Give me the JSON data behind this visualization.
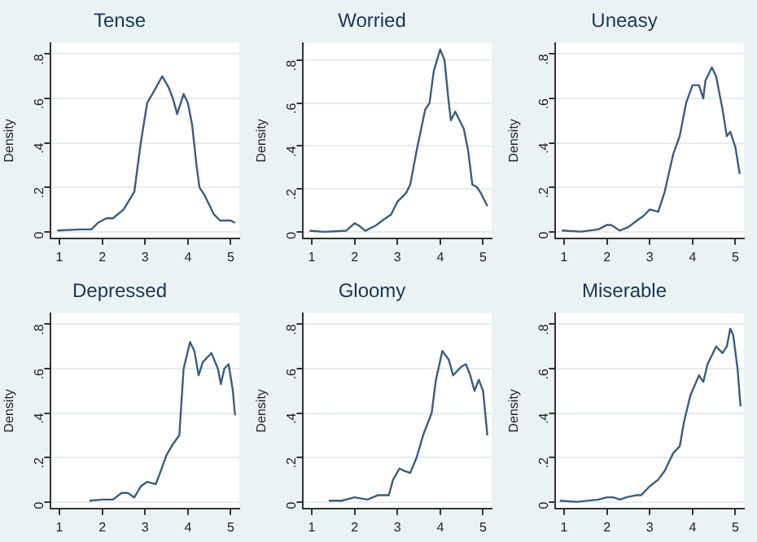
{
  "chart_data": [
    {
      "type": "line",
      "title": "Tense",
      "ylabel": "Density",
      "color": "#3e5c7e",
      "grid": "y",
      "xlim": [
        0.8,
        5.2
      ],
      "ylim": [
        -0.03,
        0.85
      ],
      "xticks": [
        1,
        2,
        3,
        4,
        5
      ],
      "yticks": [
        {
          "value": 0,
          "label": "0"
        },
        {
          "value": 0.2,
          "label": ".2"
        },
        {
          "value": 0.4,
          "label": ".4"
        },
        {
          "value": 0.6,
          "label": ".6"
        },
        {
          "value": 0.8,
          "label": ".8"
        }
      ],
      "x": [
        0.95,
        1.5,
        1.75,
        1.9,
        2.1,
        2.25,
        2.5,
        2.75,
        2.9,
        3.05,
        3.2,
        3.4,
        3.55,
        3.65,
        3.75,
        3.9,
        4.0,
        4.1,
        4.2,
        4.27,
        4.4,
        4.6,
        4.75,
        5.0,
        5.1
      ],
      "values": [
        0.005,
        0.01,
        0.01,
        0.04,
        0.06,
        0.06,
        0.1,
        0.18,
        0.4,
        0.58,
        0.63,
        0.7,
        0.65,
        0.6,
        0.53,
        0.62,
        0.58,
        0.48,
        0.3,
        0.2,
        0.16,
        0.08,
        0.05,
        0.05,
        0.04
      ]
    },
    {
      "type": "line",
      "title": "Worried",
      "ylabel": "Density",
      "color": "#3e5c7e",
      "grid": "y",
      "xlim": [
        0.8,
        5.2
      ],
      "ylim": [
        -0.03,
        0.88
      ],
      "xticks": [
        1,
        2,
        3,
        4,
        5
      ],
      "yticks": [
        {
          "value": 0,
          "label": "0"
        },
        {
          "value": 0.2,
          "label": ".2"
        },
        {
          "value": 0.4,
          "label": ".4"
        },
        {
          "value": 0.6,
          "label": ".6"
        },
        {
          "value": 0.8,
          "label": ".8"
        }
      ],
      "x": [
        0.95,
        1.3,
        1.8,
        2.0,
        2.1,
        2.25,
        2.5,
        2.7,
        2.85,
        3.0,
        3.2,
        3.3,
        3.45,
        3.65,
        3.75,
        3.85,
        4.0,
        4.1,
        4.2,
        4.25,
        4.35,
        4.55,
        4.65,
        4.75,
        4.85,
        4.95,
        5.1
      ],
      "values": [
        0.005,
        0,
        0.005,
        0.04,
        0.03,
        0.005,
        0.03,
        0.06,
        0.08,
        0.14,
        0.18,
        0.22,
        0.38,
        0.57,
        0.6,
        0.75,
        0.85,
        0.8,
        0.6,
        0.52,
        0.56,
        0.48,
        0.38,
        0.22,
        0.21,
        0.18,
        0.12
      ]
    },
    {
      "type": "line",
      "title": "Uneasy",
      "ylabel": "Density",
      "color": "#3e5c7e",
      "grid": "y",
      "xlim": [
        0.8,
        5.2
      ],
      "ylim": [
        -0.03,
        0.85
      ],
      "xticks": [
        1,
        2,
        3,
        4,
        5
      ],
      "yticks": [
        {
          "value": 0,
          "label": "0"
        },
        {
          "value": 0.2,
          "label": ".2"
        },
        {
          "value": 0.4,
          "label": ".4"
        },
        {
          "value": 0.6,
          "label": ".6"
        },
        {
          "value": 0.8,
          "label": ".8"
        }
      ],
      "x": [
        0.95,
        1.4,
        1.8,
        2.0,
        2.1,
        2.3,
        2.5,
        2.7,
        2.85,
        3.0,
        3.2,
        3.35,
        3.55,
        3.7,
        3.85,
        4.0,
        4.15,
        4.25,
        4.3,
        4.45,
        4.55,
        4.7,
        4.8,
        4.88,
        5.0,
        5.1
      ],
      "values": [
        0.005,
        0,
        0.01,
        0.03,
        0.03,
        0.005,
        0.02,
        0.05,
        0.07,
        0.1,
        0.09,
        0.18,
        0.35,
        0.43,
        0.58,
        0.66,
        0.66,
        0.6,
        0.68,
        0.74,
        0.7,
        0.55,
        0.43,
        0.45,
        0.38,
        0.26
      ]
    },
    {
      "type": "line",
      "title": "Depressed",
      "ylabel": "Density",
      "color": "#3e5c7e",
      "grid": "y",
      "xlim": [
        0.8,
        5.2
      ],
      "ylim": [
        -0.03,
        0.85
      ],
      "xticks": [
        1,
        2,
        3,
        4,
        5
      ],
      "yticks": [
        {
          "value": 0,
          "label": "0"
        },
        {
          "value": 0.2,
          "label": ".2"
        },
        {
          "value": 0.4,
          "label": ".4"
        },
        {
          "value": 0.6,
          "label": ".6"
        },
        {
          "value": 0.8,
          "label": ".8"
        }
      ],
      "x": [
        1.7,
        2.0,
        2.25,
        2.45,
        2.6,
        2.75,
        2.9,
        3.05,
        3.25,
        3.35,
        3.5,
        3.65,
        3.8,
        3.9,
        4.05,
        4.15,
        4.25,
        4.35,
        4.55,
        4.7,
        4.77,
        4.85,
        4.95,
        5.05,
        5.1
      ],
      "values": [
        0.005,
        0.01,
        0.01,
        0.04,
        0.04,
        0.02,
        0.07,
        0.09,
        0.08,
        0.13,
        0.21,
        0.26,
        0.3,
        0.6,
        0.72,
        0.68,
        0.57,
        0.63,
        0.67,
        0.6,
        0.53,
        0.6,
        0.62,
        0.5,
        0.39
      ]
    },
    {
      "type": "line",
      "title": "Gloomy",
      "ylabel": "Density",
      "color": "#3e5c7e",
      "grid": "y",
      "xlim": [
        0.8,
        5.2
      ],
      "ylim": [
        -0.03,
        0.85
      ],
      "xticks": [
        1,
        2,
        3,
        4,
        5
      ],
      "yticks": [
        {
          "value": 0,
          "label": "0"
        },
        {
          "value": 0.2,
          "label": ".2"
        },
        {
          "value": 0.4,
          "label": ".4"
        },
        {
          "value": 0.6,
          "label": ".6"
        },
        {
          "value": 0.8,
          "label": ".8"
        }
      ],
      "x": [
        1.4,
        1.7,
        2.0,
        2.3,
        2.55,
        2.8,
        2.9,
        3.05,
        3.15,
        3.3,
        3.45,
        3.6,
        3.8,
        3.9,
        4.05,
        4.2,
        4.3,
        4.5,
        4.6,
        4.7,
        4.8,
        4.9,
        5.0,
        5.1
      ],
      "values": [
        0.005,
        0.005,
        0.02,
        0.01,
        0.03,
        0.03,
        0.1,
        0.15,
        0.14,
        0.13,
        0.2,
        0.3,
        0.4,
        0.55,
        0.68,
        0.64,
        0.57,
        0.61,
        0.62,
        0.57,
        0.5,
        0.55,
        0.5,
        0.3
      ]
    },
    {
      "type": "line",
      "title": "Miserable",
      "ylabel": "Density",
      "color": "#3e5c7e",
      "grid": "y",
      "xlim": [
        0.8,
        5.2
      ],
      "ylim": [
        -0.03,
        0.85
      ],
      "xticks": [
        1,
        2,
        3,
        4,
        5
      ],
      "yticks": [
        {
          "value": 0,
          "label": "0"
        },
        {
          "value": 0.2,
          "label": ".2"
        },
        {
          "value": 0.4,
          "label": ".4"
        },
        {
          "value": 0.6,
          "label": ".6"
        },
        {
          "value": 0.8,
          "label": ".8"
        }
      ],
      "x": [
        0.9,
        1.3,
        1.8,
        2.0,
        2.15,
        2.3,
        2.45,
        2.7,
        2.8,
        3.0,
        3.2,
        3.35,
        3.55,
        3.7,
        3.8,
        3.95,
        4.15,
        4.25,
        4.35,
        4.55,
        4.7,
        4.8,
        4.88,
        4.95,
        5.05,
        5.12
      ],
      "values": [
        0.005,
        0,
        0.01,
        0.02,
        0.02,
        0.01,
        0.02,
        0.03,
        0.03,
        0.07,
        0.1,
        0.14,
        0.22,
        0.25,
        0.36,
        0.48,
        0.57,
        0.54,
        0.62,
        0.7,
        0.67,
        0.7,
        0.78,
        0.75,
        0.6,
        0.43
      ]
    }
  ]
}
